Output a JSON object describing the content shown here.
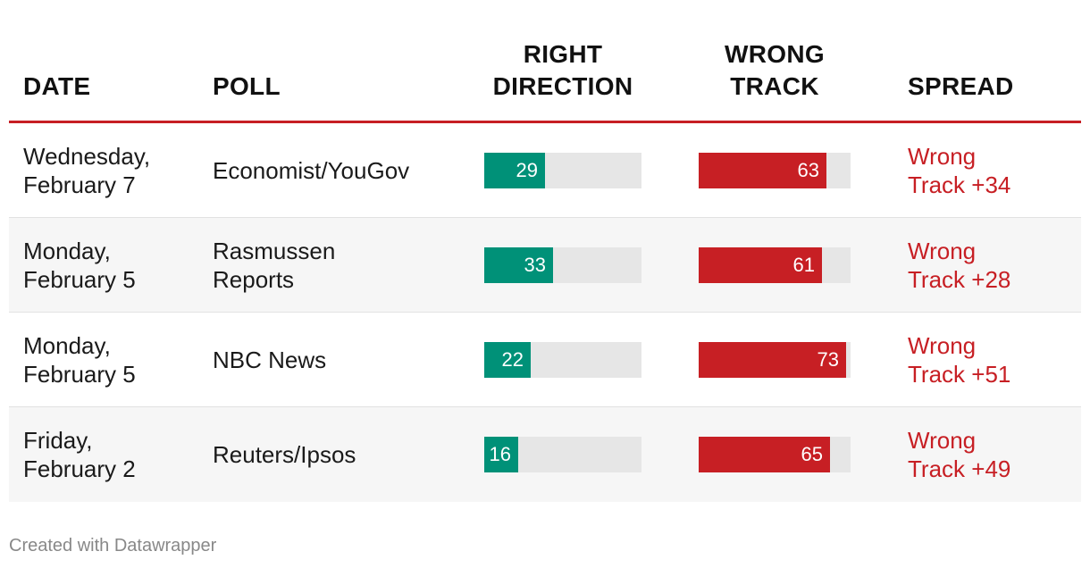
{
  "headers": {
    "date": "DATE",
    "poll": "POLL",
    "right_line1": "RIGHT",
    "right_line2": "DIRECTION",
    "wrong_line1": "WRONG",
    "wrong_line2": "TRACK",
    "spread": "SPREAD"
  },
  "colors": {
    "right_direction": "#009178",
    "wrong_track": "#c71f24",
    "bar_background": "#e6e6e6",
    "header_rule": "#c71f24"
  },
  "chart_data": {
    "type": "table",
    "columns": [
      "DATE",
      "POLL",
      "RIGHT DIRECTION",
      "WRONG TRACK",
      "SPREAD"
    ],
    "bar_max": 75,
    "rows": [
      {
        "date_line1": "Wednesday,",
        "date_line2": "February 7",
        "poll_line1": "Economist/YouGov",
        "poll_line2": "",
        "right": 29,
        "wrong": 63,
        "spread_line1": "Wrong",
        "spread_line2": "Track +34"
      },
      {
        "date_line1": "Monday,",
        "date_line2": "February 5",
        "poll_line1": "Rasmussen",
        "poll_line2": "Reports",
        "right": 33,
        "wrong": 61,
        "spread_line1": "Wrong",
        "spread_line2": "Track +28"
      },
      {
        "date_line1": "Monday,",
        "date_line2": "February 5",
        "poll_line1": "NBC News",
        "poll_line2": "",
        "right": 22,
        "wrong": 73,
        "spread_line1": "Wrong",
        "spread_line2": "Track +51"
      },
      {
        "date_line1": "Friday,",
        "date_line2": "February 2",
        "poll_line1": "Reuters/Ipsos",
        "poll_line2": "",
        "right": 16,
        "wrong": 65,
        "spread_line1": "Wrong",
        "spread_line2": "Track +49"
      }
    ]
  },
  "footer": {
    "credit": "Created with Datawrapper"
  }
}
